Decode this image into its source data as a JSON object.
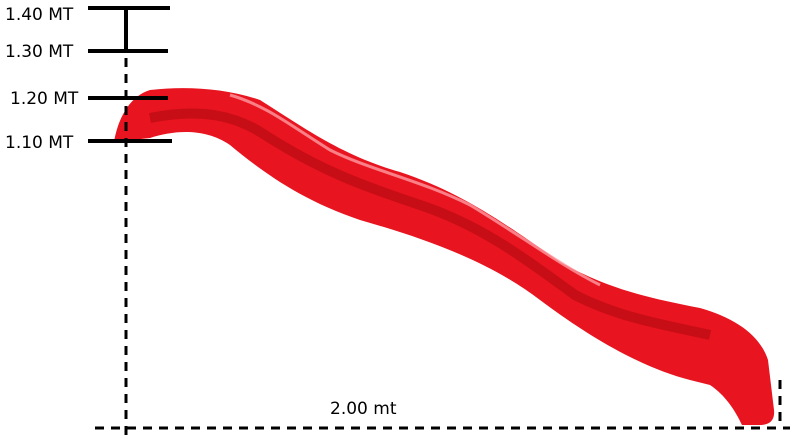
{
  "heights": [
    "1.40 MT",
    "1.30 MT",
    "1.20 MT",
    "1.10 MT"
  ],
  "length": "2.00 mt"
}
